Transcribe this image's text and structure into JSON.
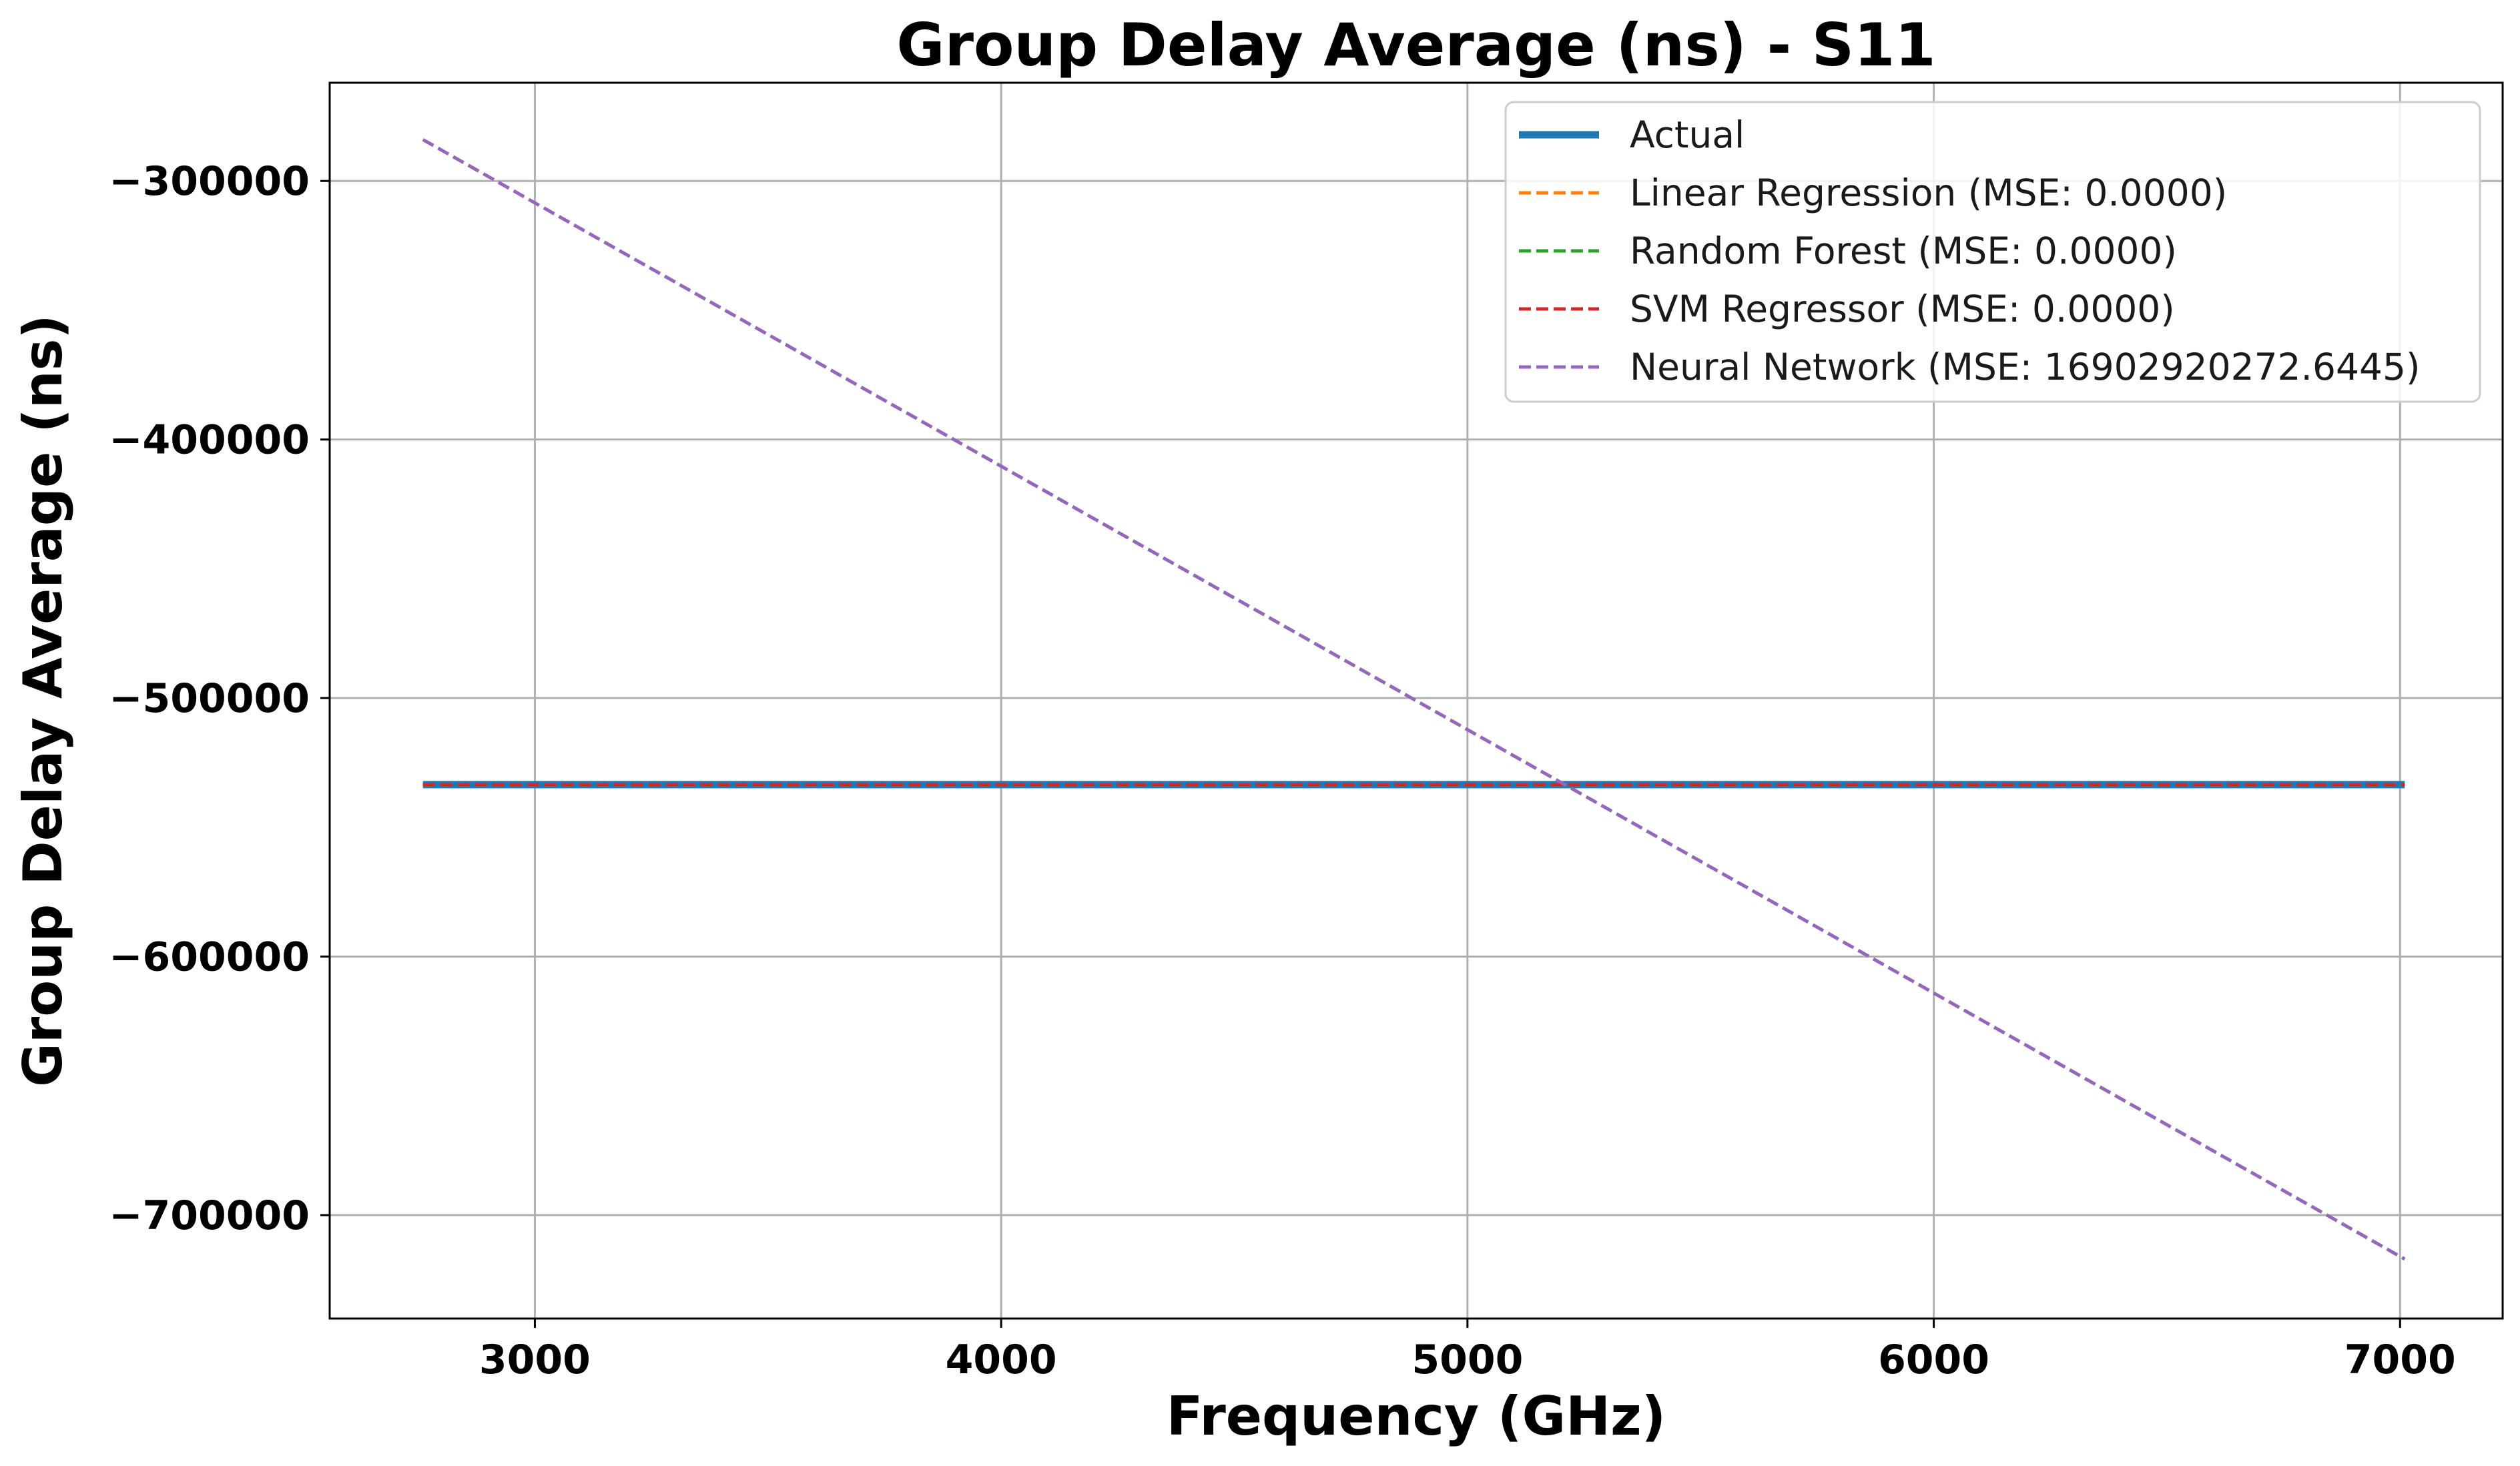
{
  "chart_data": {
    "type": "line",
    "title": "Group Delay Average (ns) - S11",
    "xlabel": "Frequency (GHz)",
    "ylabel": "Group Delay Average (ns)",
    "xlim": [
      2560,
      7220
    ],
    "ylim": [
      -740000,
      -262000
    ],
    "xticks": [
      3000,
      4000,
      5000,
      6000,
      7000
    ],
    "yticks": [
      -300000,
      -400000,
      -500000,
      -600000,
      -700000
    ],
    "xtick_labels": [
      "3000",
      "4000",
      "5000",
      "6000",
      "7000"
    ],
    "ytick_labels": [
      "−300000",
      "−400000",
      "−500000",
      "−600000",
      "−700000"
    ],
    "grid": true,
    "legend_position": "top-right",
    "series": [
      {
        "name": "Actual",
        "style": "solid",
        "color": "#1f77b4",
        "x": [
          2760,
          7010
        ],
        "y": [
          -533500,
          -533500
        ]
      },
      {
        "name": "Linear Regression (MSE: 0.0000)",
        "style": "dashed",
        "color": "#ff7f0e",
        "x": [
          2760,
          7010
        ],
        "y": [
          -533500,
          -533500
        ]
      },
      {
        "name": "Random Forest (MSE: 0.0000)",
        "style": "dashed",
        "color": "#2ca02c",
        "x": [
          2760,
          7010
        ],
        "y": [
          -533500,
          -533500
        ]
      },
      {
        "name": "SVM Regressor (MSE: 0.0000)",
        "style": "dashed",
        "color": "#d62728",
        "x": [
          2760,
          7010
        ],
        "y": [
          -533500,
          -533500
        ]
      },
      {
        "name": "Neural Network (MSE: 16902920272.6445)",
        "style": "dashed",
        "color": "#9467bd",
        "x": [
          2760,
          7010
        ],
        "y": [
          -284000,
          -717000
        ]
      }
    ]
  }
}
